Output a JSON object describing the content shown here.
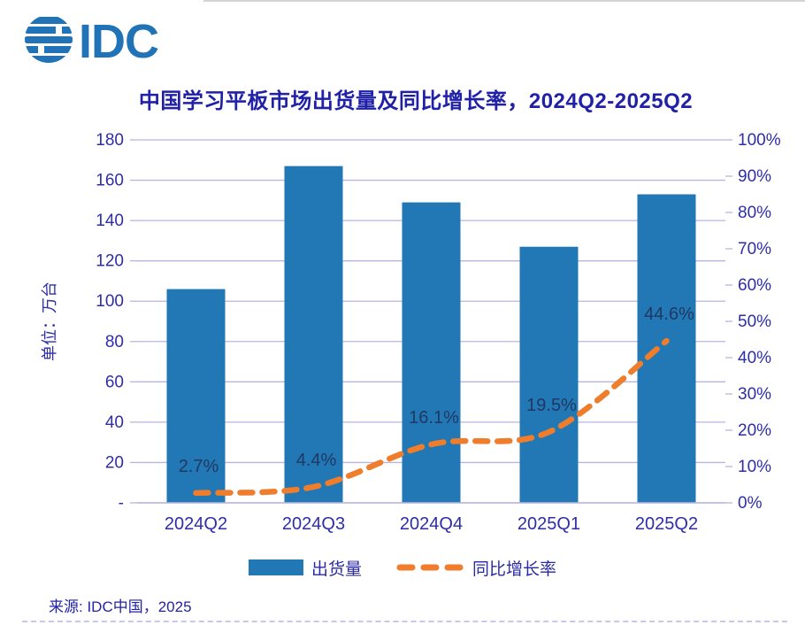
{
  "logo": {
    "text": "IDC",
    "color": "#2173b8"
  },
  "source": "来源: IDC中国，2025",
  "legend": {
    "bar_label": "出货量",
    "line_label": "同比增长率"
  },
  "chart_data": {
    "type": "bar+line",
    "title": "中国学习平板市场出货量及同比增长率，2024Q2-2025Q2",
    "categories": [
      "2024Q2",
      "2024Q3",
      "2024Q4",
      "2025Q1",
      "2025Q2"
    ],
    "series": [
      {
        "name": "出货量",
        "type": "bar",
        "axis": "left",
        "values": [
          106,
          167,
          149,
          127,
          153
        ],
        "color": "#2278b5"
      },
      {
        "name": "同比增长率",
        "type": "line",
        "axis": "right",
        "values": [
          2.7,
          4.4,
          16.1,
          19.5,
          44.6
        ],
        "point_labels": [
          "2.7%",
          "4.4%",
          "16.1%",
          "19.5%",
          "44.6%"
        ],
        "color": "#ef7d2b",
        "dashed": true
      }
    ],
    "left_axis": {
      "title": "单位：万台",
      "min": 0,
      "max": 180,
      "step": 20,
      "tick_labels": [
        "180",
        "160",
        "140",
        "120",
        "100",
        "80",
        "60",
        "40",
        "20",
        "-"
      ]
    },
    "right_axis": {
      "min": 0,
      "max": 100,
      "step": 10,
      "tick_labels": [
        "100%",
        "90%",
        "80%",
        "70%",
        "60%",
        "50%",
        "40%",
        "30%",
        "20%",
        "10%",
        "0%"
      ]
    },
    "grid": true,
    "legend_position": "bottom",
    "colors": {
      "grid": "#b9b4e1",
      "axis_text": "#2e2ea8",
      "data_label": "#1f3864",
      "title": "#2121a8"
    }
  }
}
